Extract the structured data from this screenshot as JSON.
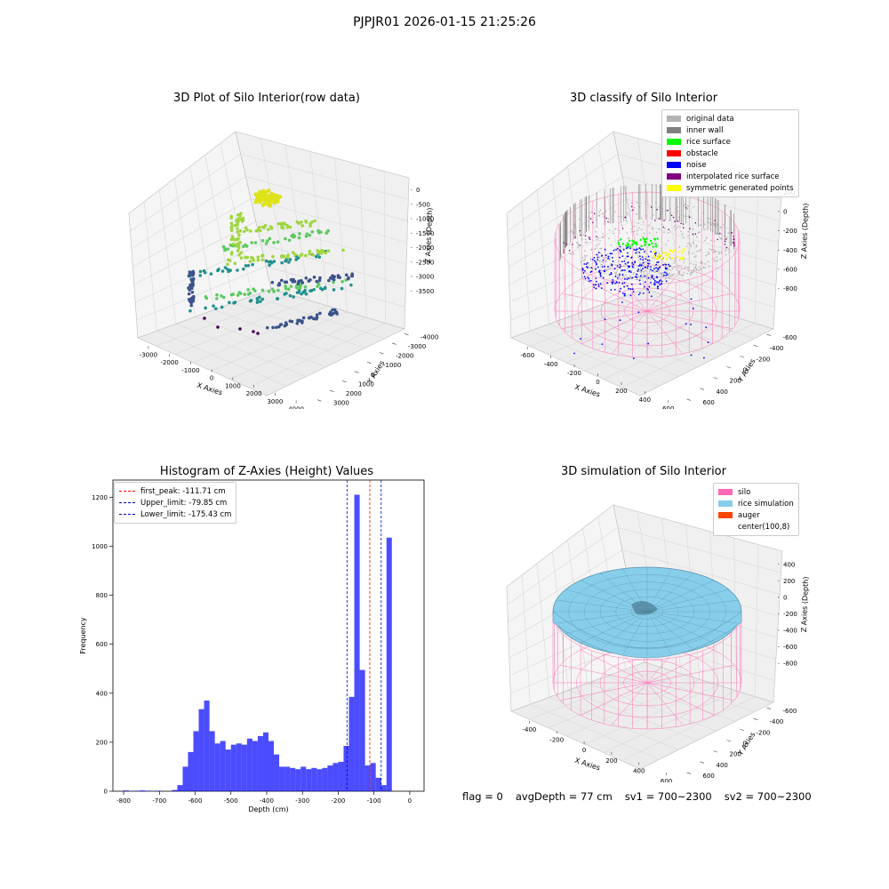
{
  "suptitle": "PJPJR01 2026-01-15 21:25:26",
  "panels": {
    "raw": {
      "title": "3D Plot of Silo Interior(row data)",
      "xlabel": "X Axies",
      "ylabel": "Y Axies",
      "zlabel": "Z Axies (Depth)",
      "xticks": [
        "-3000",
        "-2000",
        "-1000",
        "0",
        "1000",
        "2000",
        "3000",
        "4000"
      ],
      "yticks": [
        "-4000",
        "-3000",
        "-2000",
        "-1000",
        "0",
        "1000",
        "2000",
        "3000"
      ],
      "zticks": [
        "0",
        "-500",
        "-1000",
        "-1500",
        "-2000",
        "-2500",
        "-3000",
        "-3500"
      ]
    },
    "classify": {
      "title": "3D classify of Silo Interior",
      "xlabel": "X Axies",
      "ylabel": "Y Axies",
      "zlabel": "Z Axies (Depth)",
      "xticks": [
        "-600",
        "-400",
        "-200",
        "0",
        "200",
        "400",
        "600"
      ],
      "yticks": [
        "-600",
        "-400",
        "-200",
        "0",
        "200",
        "400",
        "600"
      ],
      "zticks": [
        "200",
        "0",
        "-200",
        "-400",
        "-600",
        "-800"
      ],
      "legend": [
        {
          "label": "original data",
          "color": "#b3b3b3"
        },
        {
          "label": "inner wall",
          "color": "#808080"
        },
        {
          "label": "rice surface",
          "color": "#00ff00"
        },
        {
          "label": "obstacle",
          "color": "#ff0000"
        },
        {
          "label": "noise",
          "color": "#0000ff"
        },
        {
          "label": "interpolated rice surface",
          "color": "#800080"
        },
        {
          "label": "symmetric generated points",
          "color": "#ffff00"
        }
      ]
    },
    "simulation": {
      "title": "3D simulation of Silo Interior",
      "xlabel": "X Axies",
      "ylabel": "Y Axies",
      "zlabel": "Z Axies (Depth)",
      "xticks": [
        "-400",
        "-200",
        "0",
        "200",
        "400",
        "600"
      ],
      "yticks": [
        "-600",
        "-400",
        "-200",
        "0",
        "200",
        "400",
        "600"
      ],
      "zticks": [
        "400",
        "200",
        "0",
        "-200",
        "-400",
        "-600",
        "-800"
      ],
      "legend": [
        {
          "label": "silo",
          "color": "#ff69b4"
        },
        {
          "label": "rice simulation",
          "color": "#87ceeb"
        },
        {
          "label": "auger",
          "color": "#ff4500"
        },
        {
          "label": "center(100,8)",
          "color": "#ffffff"
        }
      ]
    }
  },
  "chart_data": {
    "type": "bar",
    "title": "Histogram of Z-Axies (Height) Values",
    "xlabel": "Depth (cm)",
    "ylabel": "Frequency",
    "xlim": [
      -830,
      40
    ],
    "ylim": [
      0,
      1270
    ],
    "xticks": [
      -800,
      -700,
      -600,
      -500,
      -400,
      -300,
      -200,
      -100,
      0
    ],
    "yticks": [
      0,
      200,
      400,
      600,
      800,
      1000,
      1200
    ],
    "bin_width": 15,
    "bar_color": "#0000ff",
    "bins": [
      [
        -800,
        3
      ],
      [
        -770,
        2
      ],
      [
        -755,
        3
      ],
      [
        -740,
        2
      ],
      [
        -710,
        2
      ],
      [
        -665,
        5
      ],
      [
        -650,
        25
      ],
      [
        -635,
        100
      ],
      [
        -620,
        160
      ],
      [
        -605,
        245
      ],
      [
        -590,
        335
      ],
      [
        -575,
        370
      ],
      [
        -560,
        245
      ],
      [
        -545,
        195
      ],
      [
        -530,
        205
      ],
      [
        -515,
        170
      ],
      [
        -500,
        190
      ],
      [
        -485,
        195
      ],
      [
        -470,
        190
      ],
      [
        -455,
        215
      ],
      [
        -440,
        205
      ],
      [
        -425,
        225
      ],
      [
        -410,
        240
      ],
      [
        -395,
        205
      ],
      [
        -380,
        150
      ],
      [
        -365,
        100
      ],
      [
        -350,
        100
      ],
      [
        -335,
        95
      ],
      [
        -320,
        90
      ],
      [
        -305,
        100
      ],
      [
        -290,
        90
      ],
      [
        -275,
        95
      ],
      [
        -260,
        90
      ],
      [
        -245,
        95
      ],
      [
        -230,
        105
      ],
      [
        -215,
        115
      ],
      [
        -200,
        120
      ],
      [
        -185,
        185
      ],
      [
        -170,
        385
      ],
      [
        -155,
        1210
      ],
      [
        -140,
        495
      ],
      [
        -125,
        105
      ],
      [
        -110,
        115
      ],
      [
        -95,
        55
      ],
      [
        -80,
        25
      ],
      [
        -65,
        1035
      ]
    ],
    "vlines": [
      {
        "label": "first_peak: -111.71 cm",
        "x": -111.71,
        "color": "#ff0000"
      },
      {
        "label": "Upper_limit: -79.85 cm",
        "x": -79.85,
        "color": "#0000cc"
      },
      {
        "label": "Lower_limit: -175.43 cm",
        "x": -175.43,
        "color": "#0000cc"
      }
    ],
    "legend_position": "upper-left"
  },
  "footer": {
    "flag": "flag = 0",
    "avg": "avgDepth = 77 cm",
    "sv1": "sv1 = 700~2300",
    "sv2": "sv2 = 700~2300"
  }
}
